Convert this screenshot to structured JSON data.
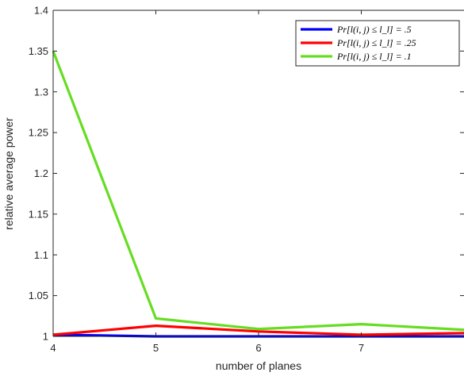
{
  "chart_data": {
    "type": "line",
    "title": "",
    "xlabel": "number of planes",
    "ylabel": "relative average power",
    "x": [
      4,
      5,
      6,
      7,
      8
    ],
    "xlim": [
      4,
      8
    ],
    "ylim": [
      1,
      1.4
    ],
    "xticks": [
      "4",
      "5",
      "6",
      "7"
    ],
    "yticks": [
      "1",
      "1.05",
      "1.1",
      "1.15",
      "1.2",
      "1.25",
      "1.3",
      "1.35",
      "1.4"
    ],
    "grid": false,
    "legend_position": "top-right",
    "series": [
      {
        "name": "Pr[l(i, j) ≤ l_l] = .5",
        "color": "#0000ff",
        "values": [
          1.002,
          1.0,
          1.0,
          1.0,
          1.0
        ]
      },
      {
        "name": "Pr[l(i, j) ≤ l_l] = .25",
        "color": "#ff0000",
        "values": [
          1.002,
          1.013,
          1.006,
          1.002,
          1.004
        ]
      },
      {
        "name": "Pr[l(i, j) ≤ l_l] = .1",
        "color": "#66dd22",
        "values": [
          1.35,
          1.022,
          1.009,
          1.015,
          1.008
        ]
      }
    ]
  }
}
